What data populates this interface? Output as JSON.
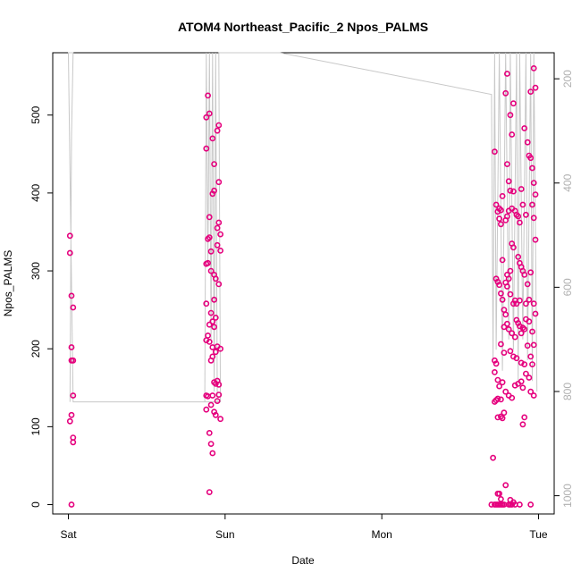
{
  "chart_data": {
    "type": "scatter",
    "title": "ATOM4 Northeast_Pacific_2 Npos_PALMS",
    "xlabel": "Date",
    "ylabel": "Npos_PALMS",
    "x_ticks": [
      "Sat",
      "Sun",
      "Mon",
      "Tue"
    ],
    "x_range_days": [
      -0.1,
      3.1
    ],
    "ylim": [
      -12,
      580
    ],
    "y_ticks": [
      0,
      100,
      200,
      300,
      400,
      500
    ],
    "y2_ticks": [
      200,
      400,
      600,
      800,
      1000
    ],
    "y2_reversed": true,
    "y2_range": [
      1035,
      150
    ],
    "grid": false,
    "colors": {
      "points": "#e5007d",
      "points_light": "#f08cc0",
      "altitude_line": "#c8c8c8",
      "axes": "#000000"
    },
    "series": [
      {
        "values": [
          [
            0.01,
            345
          ],
          [
            0.01,
            323
          ],
          [
            0.02,
            268
          ],
          [
            0.02,
            202
          ],
          [
            0.02,
            185
          ],
          [
            0.03,
            185
          ],
          [
            0.02,
            115
          ],
          [
            0.01,
            107
          ],
          [
            0.03,
            86
          ],
          [
            0.03,
            80
          ],
          [
            0.02,
            0
          ],
          [
            0.03,
            253
          ],
          [
            0.03,
            140
          ],
          [
            0.89,
            525
          ],
          [
            0.88,
            497
          ],
          [
            0.9,
            502
          ],
          [
            0.92,
            470
          ],
          [
            0.96,
            487
          ],
          [
            0.95,
            480
          ],
          [
            0.88,
            457
          ],
          [
            0.93,
            437
          ],
          [
            0.96,
            414
          ],
          [
            0.93,
            403
          ],
          [
            0.92,
            399
          ],
          [
            0.9,
            369
          ],
          [
            0.96,
            362
          ],
          [
            0.95,
            355
          ],
          [
            0.97,
            347
          ],
          [
            0.9,
            343
          ],
          [
            0.89,
            341
          ],
          [
            0.95,
            333
          ],
          [
            0.91,
            325
          ],
          [
            0.97,
            326
          ],
          [
            0.89,
            310
          ],
          [
            0.88,
            309
          ],
          [
            0.91,
            300
          ],
          [
            0.93,
            295
          ],
          [
            0.94,
            290
          ],
          [
            0.96,
            283
          ],
          [
            0.88,
            258
          ],
          [
            0.93,
            263
          ],
          [
            0.91,
            246
          ],
          [
            0.94,
            240
          ],
          [
            0.92,
            235
          ],
          [
            0.9,
            231
          ],
          [
            0.93,
            228
          ],
          [
            0.89,
            217
          ],
          [
            0.88,
            211
          ],
          [
            0.9,
            209
          ],
          [
            0.92,
            202
          ],
          [
            0.95,
            203
          ],
          [
            0.97,
            200
          ],
          [
            0.92,
            190
          ],
          [
            0.91,
            185
          ],
          [
            0.94,
            196
          ],
          [
            0.93,
            157
          ],
          [
            0.95,
            159
          ],
          [
            0.94,
            155
          ],
          [
            0.96,
            154
          ],
          [
            0.88,
            140
          ],
          [
            0.89,
            139
          ],
          [
            0.92,
            140
          ],
          [
            0.95,
            133
          ],
          [
            0.91,
            128
          ],
          [
            0.88,
            122
          ],
          [
            0.93,
            119
          ],
          [
            0.94,
            115
          ],
          [
            0.97,
            110
          ],
          [
            0.9,
            92
          ],
          [
            0.91,
            78
          ],
          [
            0.92,
            66
          ],
          [
            0.9,
            16
          ],
          [
            0.96,
            141
          ]
        ]
      },
      {
        "values": [
          [
            2.72,
            453
          ],
          [
            2.76,
            378
          ],
          [
            2.73,
            385
          ],
          [
            2.75,
            380
          ],
          [
            2.74,
            376
          ],
          [
            2.73,
            290
          ],
          [
            2.77,
            314
          ],
          [
            2.76,
            360
          ],
          [
            2.75,
            367
          ],
          [
            2.77,
            396
          ],
          [
            2.8,
            553
          ],
          [
            2.79,
            528
          ],
          [
            2.82,
            500
          ],
          [
            2.84,
            515
          ],
          [
            2.83,
            475
          ],
          [
            2.8,
            437
          ],
          [
            2.81,
            415
          ],
          [
            2.82,
            403
          ],
          [
            2.81,
            377
          ],
          [
            2.8,
            370
          ],
          [
            2.79,
            365
          ],
          [
            2.84,
            402
          ],
          [
            2.83,
            380
          ],
          [
            2.85,
            377
          ],
          [
            2.86,
            372
          ],
          [
            2.87,
            370
          ],
          [
            2.89,
            405
          ],
          [
            2.88,
            362
          ],
          [
            2.9,
            385
          ],
          [
            2.92,
            372
          ],
          [
            2.91,
            483
          ],
          [
            2.93,
            465
          ],
          [
            2.95,
            530
          ],
          [
            2.97,
            560
          ],
          [
            2.98,
            535
          ],
          [
            2.94,
            448
          ],
          [
            2.95,
            445
          ],
          [
            2.96,
            432
          ],
          [
            2.97,
            413
          ],
          [
            2.98,
            398
          ],
          [
            2.96,
            385
          ],
          [
            2.97,
            368
          ],
          [
            2.98,
            340
          ],
          [
            2.83,
            335
          ],
          [
            2.84,
            330
          ],
          [
            2.82,
            300
          ],
          [
            2.8,
            295
          ],
          [
            2.81,
            290
          ],
          [
            2.79,
            285
          ],
          [
            2.8,
            280
          ],
          [
            2.82,
            270
          ],
          [
            2.85,
            262
          ],
          [
            2.84,
            258
          ],
          [
            2.86,
            258
          ],
          [
            2.88,
            262
          ],
          [
            2.89,
            305
          ],
          [
            2.88,
            310
          ],
          [
            2.87,
            318
          ],
          [
            2.9,
            300
          ],
          [
            2.91,
            295
          ],
          [
            2.93,
            283
          ],
          [
            2.94,
            263
          ],
          [
            2.92,
            258
          ],
          [
            2.95,
            298
          ],
          [
            2.97,
            258
          ],
          [
            2.98,
            245
          ],
          [
            2.74,
            286
          ],
          [
            2.75,
            282
          ],
          [
            2.76,
            271
          ],
          [
            2.77,
            263
          ],
          [
            2.78,
            250
          ],
          [
            2.79,
            244
          ],
          [
            2.8,
            232
          ],
          [
            2.78,
            228
          ],
          [
            2.81,
            225
          ],
          [
            2.83,
            220
          ],
          [
            2.85,
            215
          ],
          [
            2.86,
            237
          ],
          [
            2.87,
            233
          ],
          [
            2.88,
            229
          ],
          [
            2.9,
            227
          ],
          [
            2.91,
            225
          ],
          [
            2.89,
            220
          ],
          [
            2.92,
            238
          ],
          [
            2.94,
            235
          ],
          [
            2.96,
            222
          ],
          [
            2.97,
            205
          ],
          [
            2.76,
            206
          ],
          [
            2.78,
            195
          ],
          [
            2.82,
            197
          ],
          [
            2.84,
            190
          ],
          [
            2.86,
            188
          ],
          [
            2.89,
            182
          ],
          [
            2.91,
            180
          ],
          [
            2.93,
            204
          ],
          [
            2.95,
            190
          ],
          [
            2.96,
            180
          ],
          [
            2.72,
            185
          ],
          [
            2.73,
            181
          ],
          [
            2.72,
            170
          ],
          [
            2.74,
            160
          ],
          [
            2.75,
            152
          ],
          [
            2.77,
            157
          ],
          [
            2.79,
            145
          ],
          [
            2.81,
            140
          ],
          [
            2.83,
            137
          ],
          [
            2.85,
            153
          ],
          [
            2.87,
            155
          ],
          [
            2.89,
            158
          ],
          [
            2.9,
            150
          ],
          [
            2.92,
            168
          ],
          [
            2.94,
            163
          ],
          [
            2.95,
            145
          ],
          [
            2.97,
            140
          ],
          [
            2.72,
            132
          ],
          [
            2.73,
            134
          ],
          [
            2.74,
            136
          ],
          [
            2.76,
            135
          ],
          [
            2.74,
            112
          ],
          [
            2.77,
            111
          ],
          [
            2.78,
            118
          ],
          [
            2.76,
            113
          ],
          [
            2.9,
            103
          ],
          [
            2.91,
            112
          ],
          [
            2.71,
            60
          ],
          [
            2.79,
            25
          ],
          [
            2.74,
            14
          ],
          [
            2.75,
            14
          ],
          [
            2.76,
            7
          ],
          [
            2.82,
            6
          ],
          [
            2.84,
            3
          ],
          [
            2.7,
            0
          ],
          [
            2.72,
            0
          ],
          [
            2.73,
            0
          ],
          [
            2.74,
            0
          ],
          [
            2.75,
            0
          ],
          [
            2.76,
            0
          ],
          [
            2.77,
            0
          ],
          [
            2.78,
            0
          ],
          [
            2.81,
            0
          ],
          [
            2.82,
            0
          ],
          [
            2.83,
            0
          ],
          [
            2.85,
            0
          ],
          [
            2.88,
            0
          ],
          [
            2.95,
            0
          ]
        ]
      }
    ],
    "altitude_line": {
      "y2_values": [
        [
          0.01,
          820
        ],
        [
          0.02,
          310
        ],
        [
          0.03,
          150
        ],
        [
          0.0,
          150
        ],
        [
          0.03,
          820
        ],
        [
          0.95,
          820
        ],
        [
          0.87,
          820
        ],
        [
          0.88,
          150
        ],
        [
          0.89,
          560
        ],
        [
          0.9,
          150
        ],
        [
          0.91,
          700
        ],
        [
          0.92,
          150
        ],
        [
          0.93,
          800
        ],
        [
          0.94,
          150
        ],
        [
          0.95,
          820
        ],
        [
          0.97,
          820
        ],
        [
          0.96,
          150
        ],
        [
          1.35,
          150
        ],
        [
          2.7,
          230
        ],
        [
          2.71,
          740
        ],
        [
          2.72,
          150
        ],
        [
          2.73,
          720
        ],
        [
          2.75,
          150
        ],
        [
          2.77,
          760
        ],
        [
          2.79,
          150
        ],
        [
          2.81,
          700
        ],
        [
          2.82,
          150
        ],
        [
          2.84,
          720
        ],
        [
          2.86,
          150
        ],
        [
          2.87,
          780
        ],
        [
          2.88,
          150
        ],
        [
          2.9,
          700
        ],
        [
          2.92,
          150
        ],
        [
          2.93,
          740
        ],
        [
          2.95,
          150
        ],
        [
          2.96,
          780
        ],
        [
          2.97,
          150
        ],
        [
          2.99,
          800
        ]
      ]
    }
  }
}
